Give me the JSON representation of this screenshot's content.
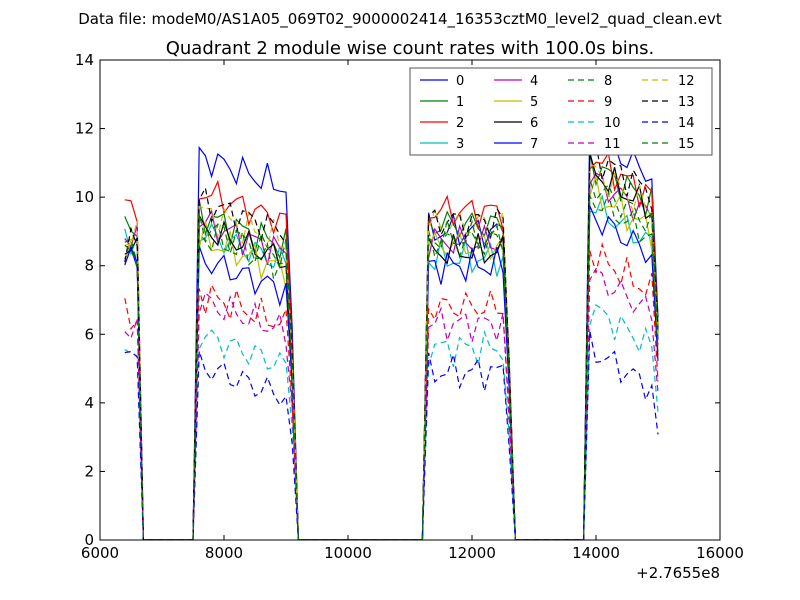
{
  "chart_data": {
    "type": "line",
    "suptitle": "Data file: modeM0/AS1A05_069T02_9000002414_16353cztM0_level2_quad_clean.evt",
    "title": "Quadrant 2 module wise count rates with 100.0s bins.",
    "xlabel": "",
    "ylabel": "",
    "x_offset_label": "+2.7655e8",
    "xlim": [
      6000,
      16000
    ],
    "ylim": [
      0,
      14
    ],
    "xticks": [
      6000,
      8000,
      10000,
      12000,
      14000,
      16000
    ],
    "yticks": [
      0,
      2,
      4,
      6,
      8,
      10,
      12,
      14
    ],
    "xtick_labels": [
      "6000",
      "8000",
      "10000",
      "12000",
      "14000",
      "16000"
    ],
    "ytick_labels": [
      "0",
      "2",
      "4",
      "6",
      "8",
      "10",
      "12",
      "14"
    ],
    "grid": false,
    "legend_position": "top-right",
    "legend_columns": 4,
    "segments": [
      {
        "start": 6400,
        "end": 6600
      },
      {
        "start": 7600,
        "end": 9100
      },
      {
        "start": 11300,
        "end": 12600
      },
      {
        "start": 13900,
        "end": 15000
      }
    ],
    "series": [
      {
        "name": "0",
        "color": "#0000ff",
        "dashed": false,
        "levels": [
          8.2,
          11.2,
          9.0,
          11.8
        ]
      },
      {
        "name": "1",
        "color": "#008000",
        "dashed": false,
        "levels": [
          9.0,
          9.5,
          9.2,
          11.0
        ]
      },
      {
        "name": "2",
        "color": "#ff0000",
        "dashed": false,
        "levels": [
          9.8,
          10.2,
          9.6,
          11.2
        ]
      },
      {
        "name": "3",
        "color": "#00bfbf",
        "dashed": false,
        "levels": [
          8.8,
          9.0,
          8.2,
          9.8
        ]
      },
      {
        "name": "4",
        "color": "#bf00bf",
        "dashed": false,
        "levels": [
          8.9,
          9.3,
          8.7,
          10.6
        ]
      },
      {
        "name": "5",
        "color": "#bfbf00",
        "dashed": false,
        "levels": [
          8.6,
          8.8,
          8.6,
          10.2
        ]
      },
      {
        "name": "6",
        "color": "#000000",
        "dashed": false,
        "levels": [
          8.4,
          9.1,
          8.4,
          10.8
        ]
      },
      {
        "name": "7",
        "color": "#0000ff",
        "dashed": false,
        "levels": [
          8.1,
          8.2,
          8.0,
          9.5
        ]
      },
      {
        "name": "8",
        "color": "#008000",
        "dashed": true,
        "levels": [
          8.5,
          8.9,
          8.7,
          10.0
        ]
      },
      {
        "name": "9",
        "color": "#ff0000",
        "dashed": true,
        "levels": [
          6.5,
          7.2,
          6.8,
          8.4
        ]
      },
      {
        "name": "10",
        "color": "#00bfbf",
        "dashed": true,
        "levels": [
          5.6,
          6.0,
          5.6,
          6.8
        ]
      },
      {
        "name": "11",
        "color": "#bf00bf",
        "dashed": true,
        "levels": [
          6.2,
          7.0,
          6.3,
          7.8
        ]
      },
      {
        "name": "12",
        "color": "#bfbf00",
        "dashed": true,
        "levels": [
          8.8,
          9.6,
          9.2,
          10.8
        ]
      },
      {
        "name": "13",
        "color": "#000000",
        "dashed": true,
        "levels": [
          8.6,
          9.9,
          9.3,
          11.3
        ]
      },
      {
        "name": "14",
        "color": "#0000ff",
        "dashed": true,
        "levels": [
          5.3,
          5.1,
          4.9,
          5.6
        ]
      },
      {
        "name": "15",
        "color": "#008000",
        "dashed": true,
        "levels": [
          8.3,
          9.2,
          8.8,
          10.4
        ]
      }
    ]
  }
}
